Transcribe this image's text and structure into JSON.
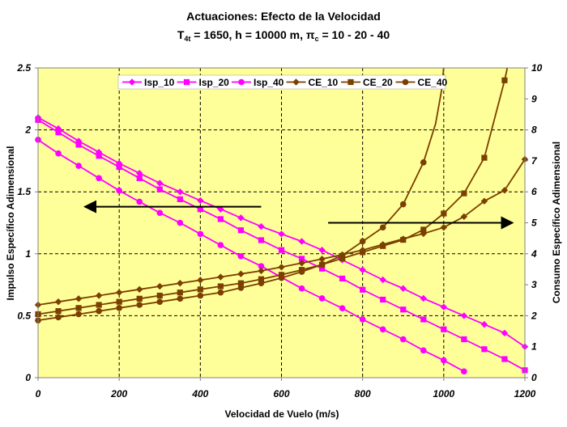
{
  "chart_data": {
    "type": "line",
    "title": "Actuaciones: Efecto de la Velocidad",
    "subtitle": {
      "t_symbol": "T",
      "t_sub": "4t",
      "t_rest": " = 1650, h = 10000 m, ",
      "pi_symbol": "π",
      "pi_sub": "c",
      "pi_rest": " = 10 - 20 - 40"
    },
    "xlabel": "Velocidad de Vuelo (m/s)",
    "ylabel_left": "Impulso Específico Adimensional",
    "ylabel_right": "Consumo Específico Adimensional",
    "xlim": [
      0,
      1200
    ],
    "ylim_left": [
      0,
      2.5
    ],
    "ylim_right": [
      0,
      10
    ],
    "x_ticks": [
      "0",
      "200",
      "400",
      "600",
      "800",
      "1000",
      "1200"
    ],
    "y_ticks_left": [
      "0",
      "0.5",
      "1",
      "1.5",
      "2",
      "2.5"
    ],
    "y_ticks_right": [
      "0",
      "1",
      "2",
      "3",
      "4",
      "5",
      "6",
      "7",
      "8",
      "9",
      "10"
    ],
    "plot_background": "#ffff99",
    "grid": true,
    "legend_position": "top",
    "series": [
      {
        "name": "Isp_10",
        "axis": "left",
        "color": "#ff00ff",
        "marker": "diamond",
        "x": [
          0,
          50,
          100,
          150,
          200,
          250,
          300,
          350,
          400,
          450,
          500,
          550,
          600,
          650,
          700,
          750,
          800,
          850,
          900,
          950,
          1000,
          1050,
          1100,
          1150,
          1200
        ],
        "y": [
          2.1,
          2.01,
          1.91,
          1.82,
          1.73,
          1.65,
          1.57,
          1.5,
          1.43,
          1.36,
          1.29,
          1.22,
          1.16,
          1.1,
          1.03,
          0.95,
          0.87,
          0.79,
          0.72,
          0.64,
          0.57,
          0.5,
          0.43,
          0.36,
          0.25
        ]
      },
      {
        "name": "Isp_20",
        "axis": "left",
        "color": "#ff00ff",
        "marker": "square",
        "x": [
          0,
          50,
          100,
          150,
          200,
          250,
          300,
          350,
          400,
          450,
          500,
          550,
          600,
          650,
          700,
          750,
          800,
          850,
          900,
          950,
          1000,
          1050,
          1100,
          1150,
          1200
        ],
        "y": [
          2.08,
          1.98,
          1.88,
          1.79,
          1.7,
          1.61,
          1.52,
          1.44,
          1.36,
          1.28,
          1.19,
          1.11,
          1.03,
          0.96,
          0.88,
          0.8,
          0.71,
          0.63,
          0.55,
          0.47,
          0.39,
          0.31,
          0.23,
          0.15,
          0.06
        ]
      },
      {
        "name": "Isp_40",
        "axis": "left",
        "color": "#ff00ff",
        "marker": "circle",
        "x": [
          0,
          50,
          100,
          150,
          200,
          250,
          300,
          350,
          400,
          450,
          500,
          550,
          600,
          650,
          700,
          750,
          800,
          850,
          900,
          950,
          1000,
          1050
        ],
        "y": [
          1.92,
          1.81,
          1.71,
          1.61,
          1.51,
          1.42,
          1.33,
          1.25,
          1.16,
          1.07,
          0.98,
          0.9,
          0.81,
          0.72,
          0.64,
          0.56,
          0.47,
          0.39,
          0.31,
          0.22,
          0.14,
          0.05
        ]
      },
      {
        "name": "CE_10",
        "axis": "right",
        "color": "#7b3f00",
        "marker": "diamond",
        "x": [
          0,
          50,
          100,
          150,
          200,
          250,
          300,
          350,
          400,
          450,
          500,
          550,
          600,
          650,
          700,
          750,
          800,
          850,
          900,
          950,
          1000,
          1050,
          1100,
          1150,
          1200
        ],
        "y": [
          2.35,
          2.45,
          2.55,
          2.65,
          2.75,
          2.85,
          2.95,
          3.05,
          3.15,
          3.25,
          3.35,
          3.45,
          3.57,
          3.7,
          3.83,
          3.97,
          4.12,
          4.3,
          4.48,
          4.65,
          4.85,
          5.2,
          5.7,
          6.05,
          7.05
        ]
      },
      {
        "name": "CE_20",
        "axis": "right",
        "color": "#7b3f00",
        "marker": "square",
        "x": [
          0,
          50,
          100,
          150,
          200,
          250,
          300,
          350,
          400,
          450,
          500,
          550,
          600,
          650,
          700,
          750,
          800,
          850,
          900,
          950,
          1000,
          1050,
          1100,
          1150
        ],
        "y": [
          2.05,
          2.15,
          2.25,
          2.35,
          2.45,
          2.55,
          2.65,
          2.75,
          2.85,
          2.95,
          3.05,
          3.18,
          3.32,
          3.48,
          3.65,
          3.85,
          4.05,
          4.25,
          4.45,
          4.78,
          5.3,
          5.95,
          7.1,
          9.6
        ]
      },
      {
        "name": "CE_40",
        "axis": "right",
        "color": "#7b3f00",
        "marker": "circle",
        "x": [
          0,
          50,
          100,
          150,
          200,
          250,
          300,
          350,
          400,
          450,
          500,
          550,
          600,
          650,
          700,
          750,
          800,
          850,
          900,
          950
        ],
        "y": [
          1.85,
          1.95,
          2.05,
          2.15,
          2.25,
          2.35,
          2.45,
          2.55,
          2.65,
          2.75,
          2.9,
          3.05,
          3.22,
          3.42,
          3.65,
          3.95,
          4.4,
          4.85,
          5.6,
          6.95
        ]
      }
    ],
    "curve_tails": {
      "CE_20": {
        "x": [
          1150,
          1155,
          1160
        ],
        "y": [
          9.6,
          9.9,
          10.3
        ]
      },
      "CE_40": {
        "x": [
          950,
          980,
          995,
          1002
        ],
        "y": [
          6.95,
          8.2,
          9.3,
          10.3
        ]
      }
    },
    "arrows": [
      {
        "direction": "left",
        "axis": "left",
        "from": [
          550,
          1.38
        ],
        "to": [
          115,
          1.38
        ]
      },
      {
        "direction": "right",
        "axis": "right",
        "from": [
          715,
          5.0
        ],
        "to": [
          1170,
          5.0
        ]
      }
    ]
  }
}
